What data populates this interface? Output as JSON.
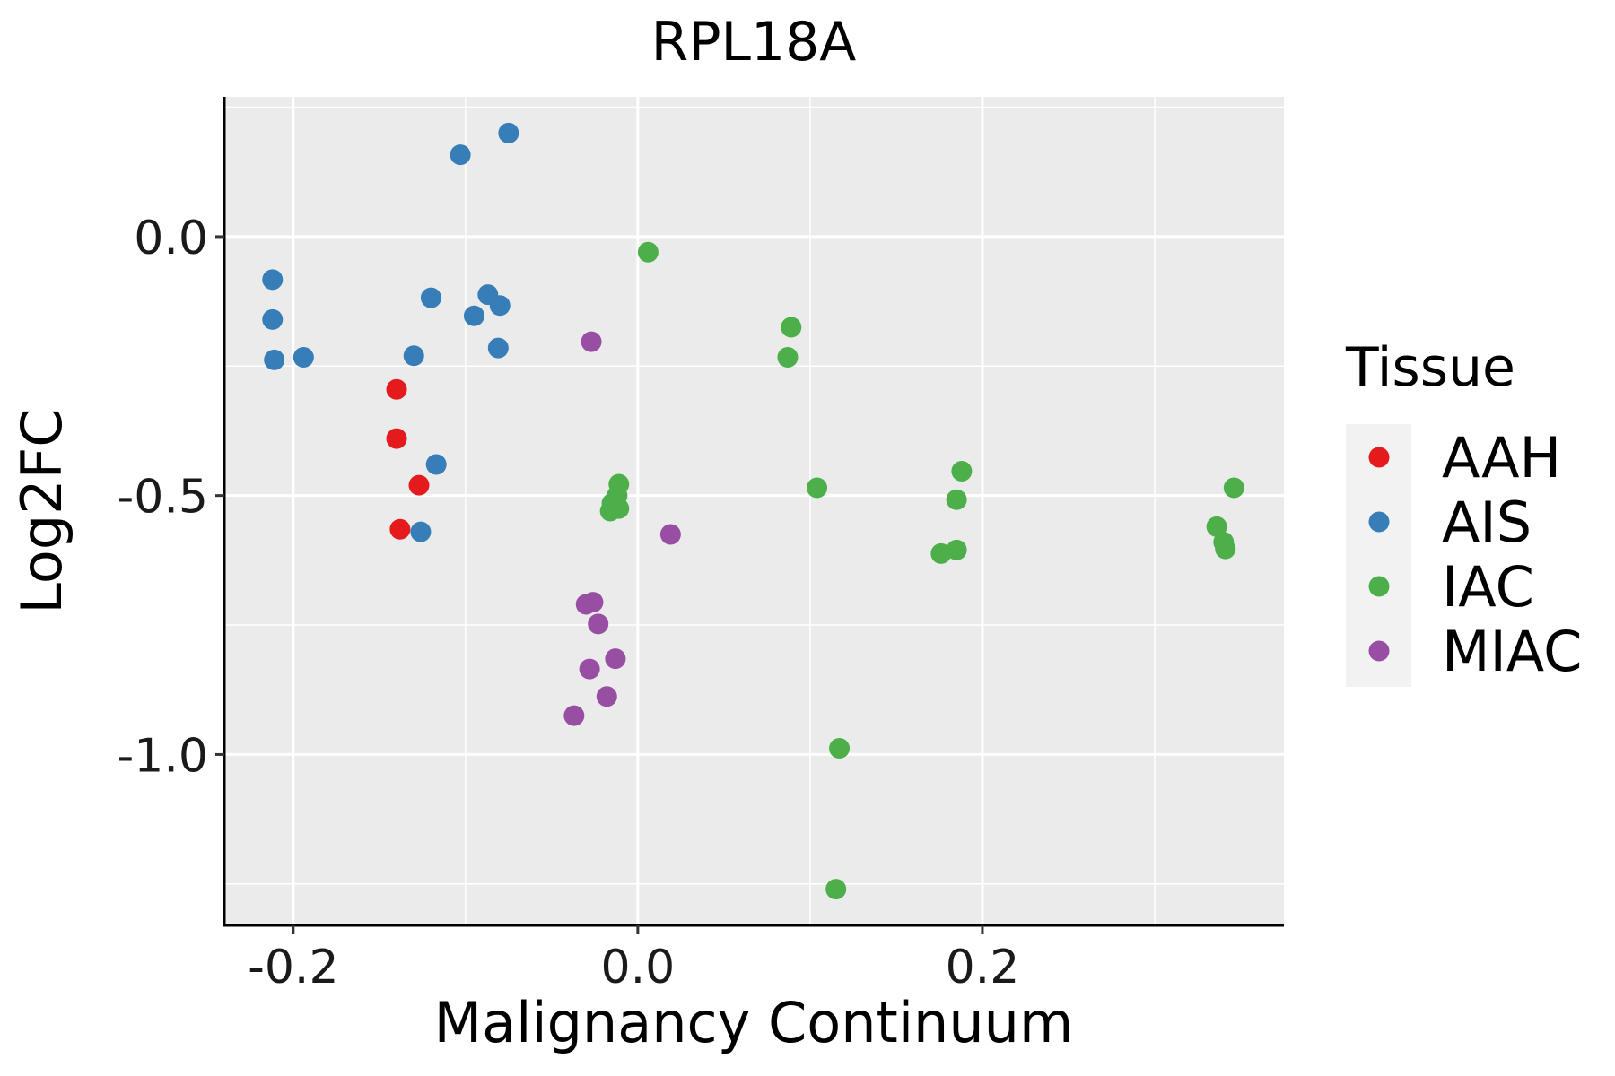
{
  "chart_data": {
    "type": "scatter",
    "title": "RPL18A",
    "xlabel": "Malignancy Continuum",
    "ylabel": "Log2FC",
    "xlim": [
      -0.24,
      0.375
    ],
    "ylim": [
      -1.33,
      0.27
    ],
    "x_ticks": [
      -0.2,
      0.0,
      0.2
    ],
    "x_tick_labels": [
      "-0.2",
      "0.0",
      "0.2"
    ],
    "y_ticks": [
      0.0,
      -0.5,
      -1.0
    ],
    "y_tick_labels": [
      "0.0",
      "-0.5",
      "-1.0"
    ],
    "x_minor_ticks": [
      -0.1,
      0.1,
      0.3
    ],
    "y_minor_ticks": [
      0.25,
      -0.25,
      -0.75,
      -1.25
    ],
    "grid": true,
    "legend_position": "right",
    "legend_title": "Tissue",
    "series": [
      {
        "name": "AAH",
        "color": "#E41A1C",
        "x": [
          -0.14,
          -0.14,
          -0.127,
          -0.138
        ],
        "y": [
          -0.295,
          -0.39,
          -0.48,
          -0.565
        ]
      },
      {
        "name": "AIS",
        "color": "#377EB8",
        "x": [
          -0.075,
          -0.103,
          -0.212,
          -0.212,
          -0.211,
          -0.194,
          -0.12,
          -0.13,
          -0.087,
          -0.095,
          -0.08,
          -0.081,
          -0.117,
          -0.126
        ],
        "y": [
          0.2,
          0.158,
          -0.083,
          -0.16,
          -0.238,
          -0.233,
          -0.118,
          -0.23,
          -0.112,
          -0.153,
          -0.133,
          -0.215,
          -0.44,
          -0.57
        ]
      },
      {
        "name": "IAC",
        "color": "#4DAF4A",
        "x": [
          0.006,
          0.089,
          0.087,
          -0.011,
          -0.012,
          -0.015,
          -0.016,
          -0.011,
          0.104,
          0.188,
          0.185,
          0.176,
          0.185,
          0.346,
          0.336,
          0.34,
          0.341,
          0.117,
          0.115
        ],
        "y": [
          -0.03,
          -0.175,
          -0.233,
          -0.478,
          -0.5,
          -0.515,
          -0.53,
          -0.525,
          -0.485,
          -0.453,
          -0.508,
          -0.612,
          -0.605,
          -0.485,
          -0.56,
          -0.59,
          -0.603,
          -0.988,
          -1.26
        ]
      },
      {
        "name": "MIAC",
        "color": "#984EA3",
        "x": [
          -0.027,
          0.019,
          -0.03,
          -0.026,
          -0.023,
          -0.013,
          -0.028,
          -0.018,
          -0.037
        ],
        "y": [
          -0.203,
          -0.575,
          -0.71,
          -0.706,
          -0.748,
          -0.815,
          -0.835,
          -0.888,
          -0.925
        ]
      }
    ]
  }
}
